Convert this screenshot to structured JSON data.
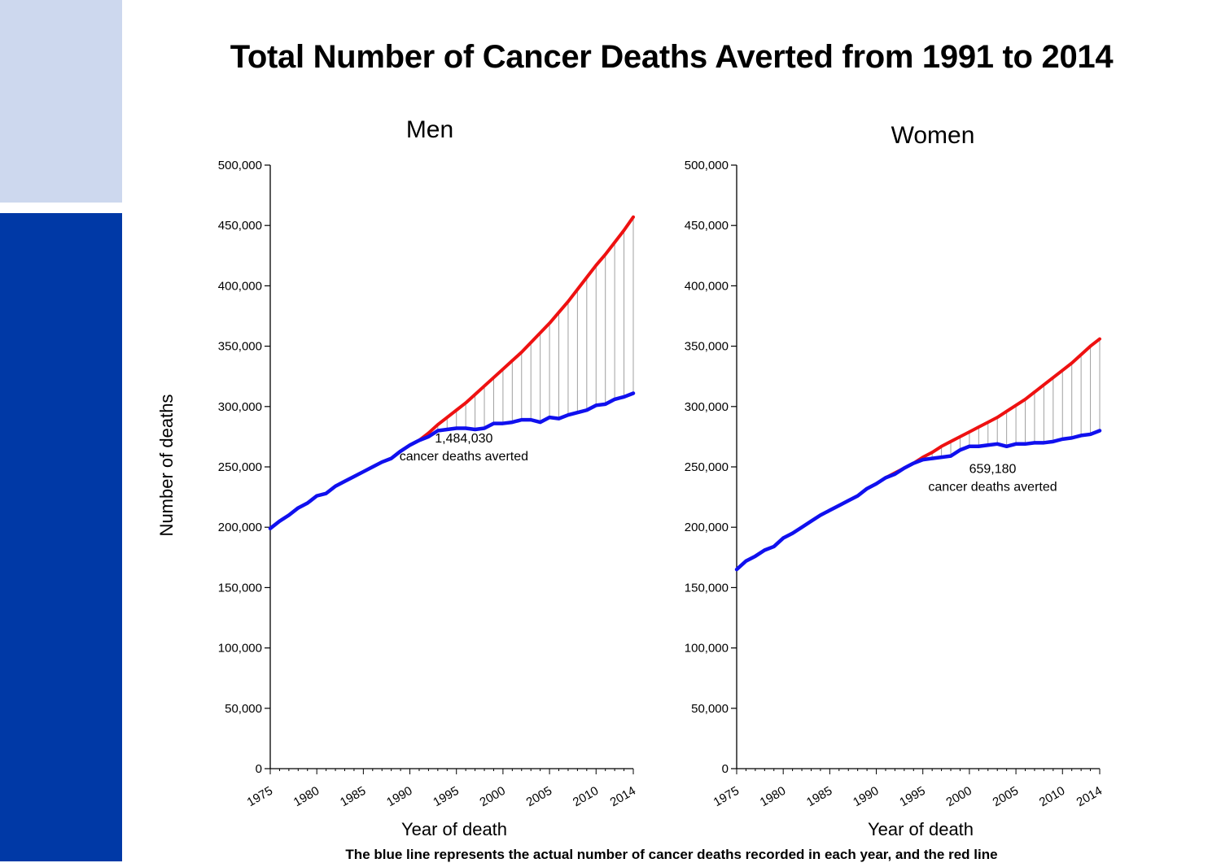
{
  "title": "Total Number of Cancer Deaths Averted from 1991 to 2014",
  "ylabel": "Number of deaths",
  "caption": "The blue line represents the actual number of cancer deaths recorded in each year, and the red line",
  "colors": {
    "actual": "#1010ee",
    "expected": "#ee1111",
    "gap": "#a0a0a0",
    "sidebar_dark": "#0039a6",
    "sidebar_light": "#cdd8ee"
  },
  "chart_data": [
    {
      "type": "line",
      "title": "Men",
      "xlabel": "Year of death",
      "ylabel": "Number of deaths",
      "ylim": [
        0,
        500000
      ],
      "xlim": [
        1975,
        2014
      ],
      "yticks": [
        0,
        50000,
        100000,
        150000,
        200000,
        250000,
        300000,
        350000,
        400000,
        450000,
        500000
      ],
      "ytick_labels": [
        "0",
        "50,000",
        "100,000",
        "150,000",
        "200,000",
        "250,000",
        "300,000",
        "350,000",
        "400,000",
        "450,000",
        "500,000"
      ],
      "xticks": [
        1975,
        1980,
        1985,
        1990,
        1995,
        2000,
        2005,
        2010,
        2014
      ],
      "xtick_labels": [
        "1975",
        "1980",
        "1985",
        "1990",
        "1995",
        "2000",
        "2005",
        "2010",
        "2014"
      ],
      "annotation": {
        "value": "1,484,030",
        "text": "cancer deaths averted",
        "x": 1995.8,
        "y": 260000
      },
      "series": [
        {
          "role": "actual",
          "x": [
            1975,
            1976,
            1977,
            1978,
            1979,
            1980,
            1981,
            1982,
            1983,
            1984,
            1985,
            1986,
            1987,
            1988,
            1989,
            1990,
            1991,
            1992,
            1993,
            1994,
            1995,
            1996,
            1997,
            1998,
            1999,
            2000,
            2001,
            2002,
            2003,
            2004,
            2005,
            2006,
            2007,
            2008,
            2009,
            2010,
            2011,
            2012,
            2013,
            2014
          ],
          "values": [
            199000,
            205000,
            210000,
            216000,
            220000,
            226000,
            228000,
            234000,
            238000,
            242000,
            246000,
            250000,
            254000,
            257000,
            263000,
            268000,
            272000,
            275000,
            280000,
            281000,
            282000,
            282000,
            281000,
            282000,
            286000,
            286000,
            287000,
            289000,
            289000,
            287000,
            291000,
            290000,
            293000,
            295000,
            297000,
            301000,
            302000,
            306000,
            308000,
            311000
          ]
        },
        {
          "role": "expected",
          "x": [
            1991,
            1992,
            1993,
            1994,
            1995,
            1996,
            1997,
            1998,
            1999,
            2000,
            2001,
            2002,
            2003,
            2004,
            2005,
            2006,
            2007,
            2008,
            2009,
            2010,
            2011,
            2012,
            2013,
            2014
          ],
          "values": [
            272000,
            278000,
            285000,
            291000,
            297000,
            303000,
            310000,
            317000,
            324000,
            331000,
            338000,
            345000,
            353000,
            361000,
            369000,
            378000,
            387000,
            397000,
            407000,
            417000,
            426000,
            436000,
            446000,
            457000
          ]
        }
      ]
    },
    {
      "type": "line",
      "title": "Women",
      "xlabel": "Year of death",
      "ylabel": "",
      "ylim": [
        0,
        500000
      ],
      "xlim": [
        1975,
        2014
      ],
      "yticks": [
        0,
        50000,
        100000,
        150000,
        200000,
        250000,
        300000,
        350000,
        400000,
        450000,
        500000
      ],
      "ytick_labels": [
        "0",
        "50,000",
        "100,000",
        "150,000",
        "200,000",
        "250,000",
        "300,000",
        "350,000",
        "400,000",
        "450,000",
        "500,000"
      ],
      "xticks": [
        1975,
        1980,
        1985,
        1990,
        1995,
        2000,
        2005,
        2010,
        2014
      ],
      "xtick_labels": [
        "1975",
        "1980",
        "1985",
        "1990",
        "1995",
        "2000",
        "2005",
        "2010",
        "2014"
      ],
      "annotation": {
        "value": "659,180",
        "text": "cancer deaths averted",
        "x": 2002.5,
        "y": 235000
      },
      "series": [
        {
          "role": "actual",
          "x": [
            1975,
            1976,
            1977,
            1978,
            1979,
            1980,
            1981,
            1982,
            1983,
            1984,
            1985,
            1986,
            1987,
            1988,
            1989,
            1990,
            1991,
            1992,
            1993,
            1994,
            1995,
            1996,
            1997,
            1998,
            1999,
            2000,
            2001,
            2002,
            2003,
            2004,
            2005,
            2006,
            2007,
            2008,
            2009,
            2010,
            2011,
            2012,
            2013,
            2014
          ],
          "values": [
            165000,
            172000,
            176000,
            181000,
            184000,
            191000,
            195000,
            200000,
            205000,
            210000,
            214000,
            218000,
            222000,
            226000,
            232000,
            236000,
            241000,
            244000,
            249000,
            253000,
            256000,
            257000,
            258000,
            259000,
            264000,
            267000,
            267000,
            268000,
            269000,
            267000,
            269000,
            269000,
            270000,
            270000,
            271000,
            273000,
            274000,
            276000,
            277000,
            280000
          ]
        },
        {
          "role": "expected",
          "x": [
            1991,
            1992,
            1993,
            1994,
            1995,
            1996,
            1997,
            1998,
            1999,
            2000,
            2001,
            2002,
            2003,
            2004,
            2005,
            2006,
            2007,
            2008,
            2009,
            2010,
            2011,
            2012,
            2013,
            2014
          ],
          "values": [
            241000,
            245000,
            249000,
            253000,
            258000,
            262000,
            267000,
            271000,
            275000,
            279000,
            283000,
            287000,
            291000,
            296000,
            301000,
            306000,
            312000,
            318000,
            324000,
            330000,
            336000,
            343000,
            350000,
            356000
          ]
        }
      ]
    }
  ]
}
